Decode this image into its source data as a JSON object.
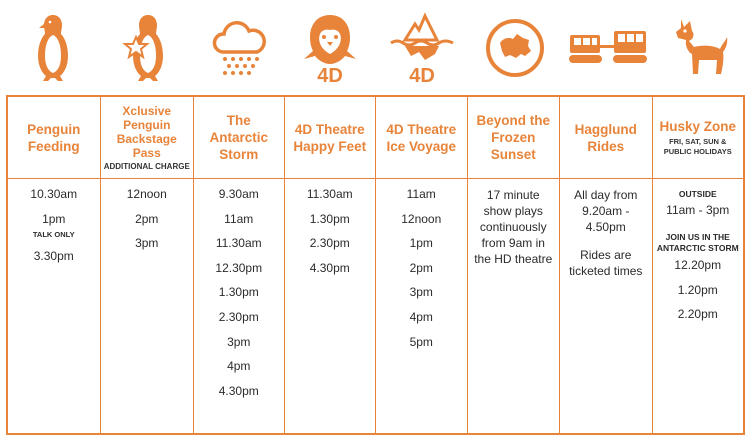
{
  "brand": {
    "accent": "#e8843a",
    "text": "#2b2b2b"
  },
  "icons": [
    "penguin-icon",
    "star-penguin-icon",
    "storm-cloud-icon",
    "4d-penguin-icon",
    "4d-iceberg-icon",
    "antarctica-globe-icon",
    "hagglund-vehicle-icon",
    "husky-dog-icon"
  ],
  "columns": [
    {
      "title": "Penguin Feeding",
      "subtitle": "",
      "entries": [
        "10.30am",
        "1pm",
        "3.30pm"
      ],
      "note": "TALK ONLY"
    },
    {
      "title": "Xclusive Penguin Backstage Pass",
      "subtitle": "ADDITIONAL CHARGE",
      "entries": [
        "12noon",
        "2pm",
        "3pm"
      ]
    },
    {
      "title": "The Antarctic Storm",
      "subtitle": "",
      "entries": [
        "9.30am",
        "11am",
        "11.30am",
        "12.30pm",
        "1.30pm",
        "2.30pm",
        "3pm",
        "4pm",
        "4.30pm"
      ]
    },
    {
      "title": "4D Theatre Happy Feet",
      "subtitle": "",
      "entries": [
        "11.30am",
        "1.30pm",
        "2.30pm",
        "4.30pm"
      ]
    },
    {
      "title": "4D Theatre Ice Voyage",
      "subtitle": "",
      "entries": [
        "11am",
        "12noon",
        "1pm",
        "2pm",
        "3pm",
        "4pm",
        "5pm"
      ]
    },
    {
      "title": "Beyond the Frozen Sunset",
      "subtitle": "",
      "text": "17 minute show plays continuously from 9am in the HD theatre"
    },
    {
      "title": "Hagglund Rides",
      "subtitle": "",
      "text": "All day from 9.20am - 4.50pm",
      "text2": "Rides are ticketed times"
    },
    {
      "title": "Husky Zone",
      "subtitle": "FRI, SAT, SUN & PUBLIC HOLIDAYS",
      "outside_label": "OUTSIDE",
      "outside_time": "11am - 3pm",
      "join_label": "JOIN US IN THE ANTARCTIC STORM",
      "entries": [
        "12.20pm",
        "1.20pm",
        "2.20pm"
      ]
    }
  ]
}
